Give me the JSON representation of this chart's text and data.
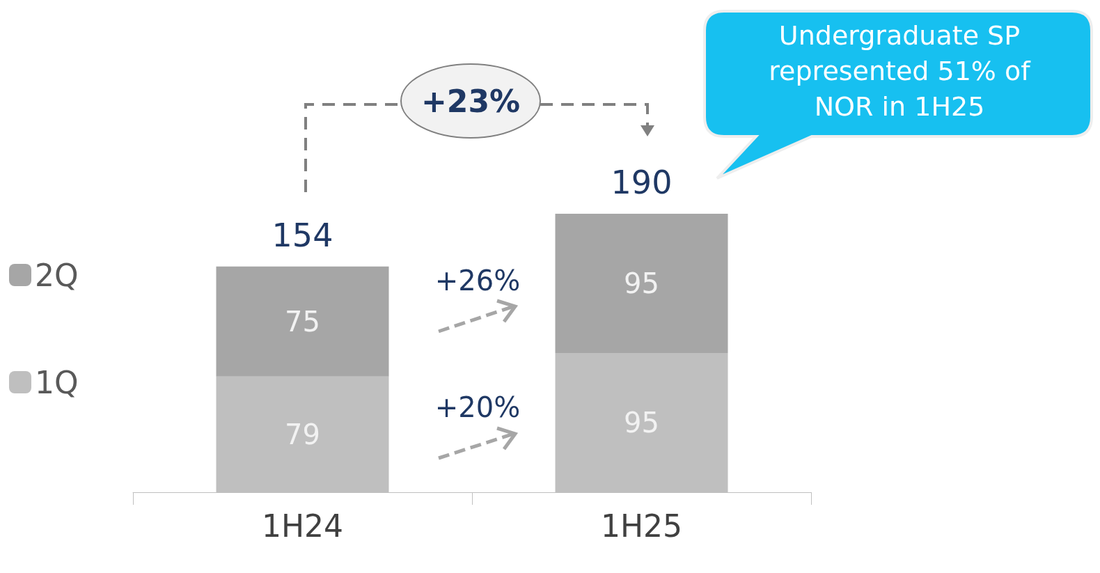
{
  "chart_data": {
    "type": "bar",
    "stacked": true,
    "categories": [
      "1H24",
      "1H25"
    ],
    "series": [
      {
        "name": "1Q",
        "color": "#bfbfbf",
        "values": [
          79,
          95
        ]
      },
      {
        "name": "2Q",
        "color": "#a6a6a6",
        "values": [
          75,
          95
        ]
      }
    ],
    "totals": [
      "154",
      "190"
    ],
    "data_labels": true,
    "legend": "left",
    "grid": false,
    "annotations": [
      "+23%",
      "+26%",
      "+20%",
      "Undergraduate SP represented 51% of NOR in 1H25"
    ]
  }
}
